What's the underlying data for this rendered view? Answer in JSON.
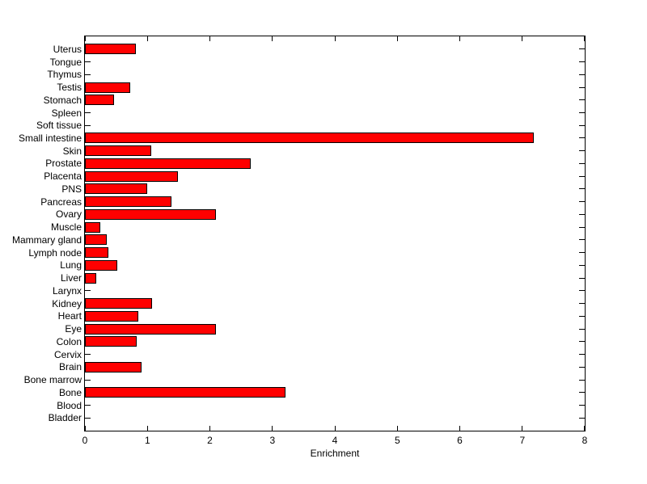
{
  "chart_data": {
    "type": "bar",
    "orientation": "horizontal",
    "title": "",
    "xlabel": "Enrichment",
    "ylabel": "",
    "xlim": [
      0,
      8
    ],
    "xticks": [
      0,
      1,
      2,
      3,
      4,
      5,
      6,
      7,
      8
    ],
    "grid": false,
    "legend": null,
    "bar_color": "#ff0000",
    "bar_edge_color": "#000000",
    "axis_color": "#000000",
    "background_color": "#ffffff",
    "categories_top_to_bottom": [
      "Uterus",
      "Tongue",
      "Thymus",
      "Testis",
      "Stomach",
      "Spleen",
      "Soft tissue",
      "Small intestine",
      "Skin",
      "Prostate",
      "Placenta",
      "PNS",
      "Pancreas",
      "Ovary",
      "Muscle",
      "Mammary gland",
      "Lymph node",
      "Lung",
      "Liver",
      "Larynx",
      "Kidney",
      "Heart",
      "Eye",
      "Colon",
      "Cervix",
      "Brain",
      "Bone marrow",
      "Bone",
      "Blood",
      "Bladder"
    ],
    "values": [
      0.82,
      0,
      0,
      0.73,
      0.46,
      0,
      0,
      7.18,
      1.06,
      2.65,
      1.49,
      1.0,
      1.39,
      2.1,
      0.24,
      0.35,
      0.38,
      0.52,
      0.18,
      0,
      1.08,
      0.85,
      2.09,
      0.83,
      0,
      0.91,
      0,
      3.21,
      0,
      0
    ]
  }
}
